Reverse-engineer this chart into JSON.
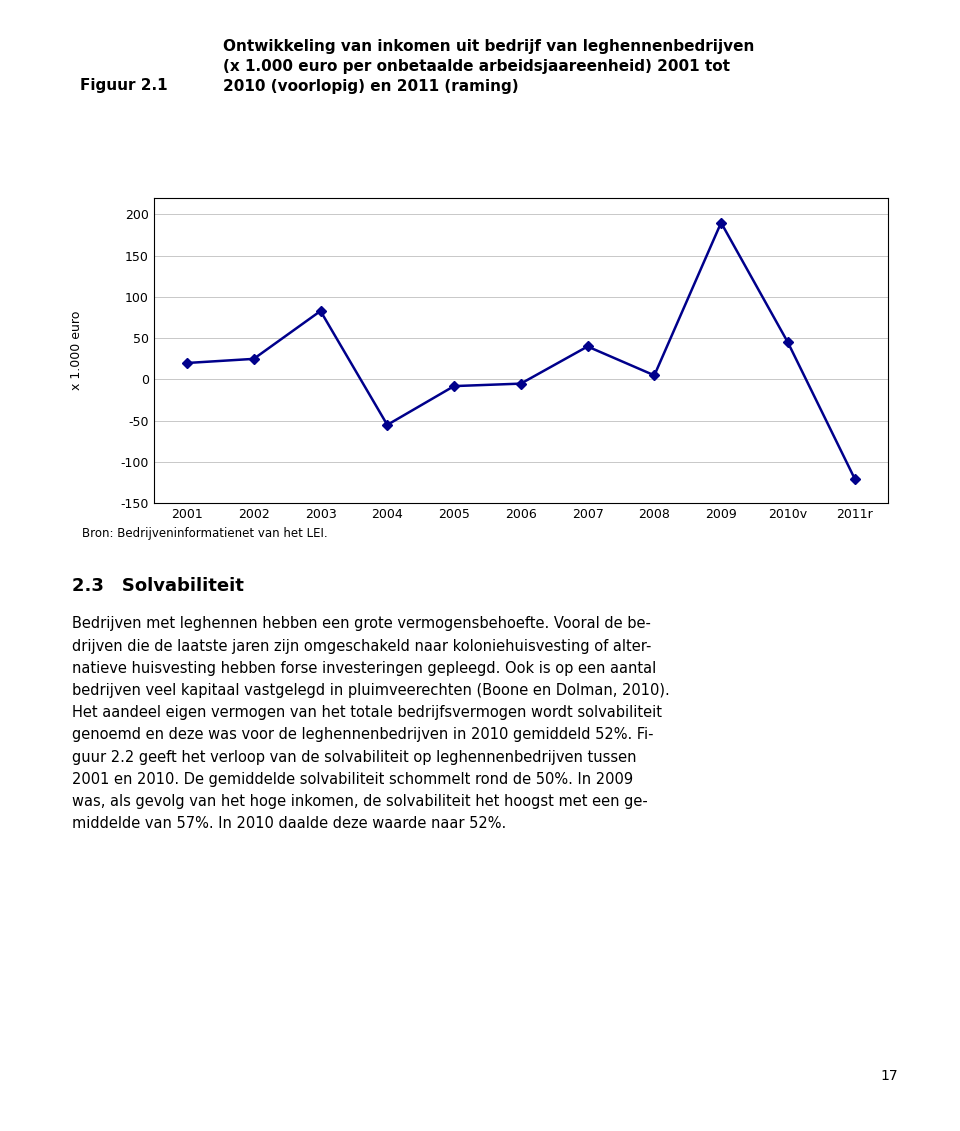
{
  "fig_label": "Figuur 2.1",
  "title_line1": "Ontwikkeling van inkomen uit bedrijf van leghennenbedrijven",
  "title_line2": "(x 1.000 euro per onbetaalde arbeidsjaareenheid) 2001 tot",
  "title_line3": "2010 (voorlopig) en 2011 (raming)",
  "x_labels": [
    "2001",
    "2002",
    "2003",
    "2004",
    "2005",
    "2006",
    "2007",
    "2008",
    "2009",
    "2010v",
    "2011r"
  ],
  "y_values": [
    20,
    25,
    83,
    -55,
    -8,
    -5,
    40,
    5,
    190,
    45,
    -120
  ],
  "ylabel": "x 1.000 euro",
  "ylim": [
    -150,
    220
  ],
  "yticks": [
    -150,
    -100,
    -50,
    0,
    50,
    100,
    150,
    200
  ],
  "source_text": "Bron: Bedrijveninformatienet van het LEI.",
  "line_color": "#00008B",
  "marker": "D",
  "marker_size": 5,
  "header_bg": "#C8C8C8",
  "chart_bg": "#FFFFFF",
  "source_bg": "#E8E8E8",
  "section_number": "2.3",
  "section_title": "Solvabiliteit",
  "body_lines": [
    "Bedrijven met leghennen hebben een grote vermogensbehoefte. Vooral de be-",
    "drijven die de laatste jaren zijn omgeschakeld naar koloniehuisvesting of alter-",
    "natieve huisvesting hebben forse investeringen gepleegd. Ook is op een aantal",
    "bedrijven veel kapitaal vastgelegd in pluimveerechten (Boone en Dolman, 2010).",
    "Het aandeel eigen vermogen van het totale bedrijfsvermogen wordt solvabiliteit",
    "genoemd en deze was voor de leghennenbedrijven in 2010 gemiddeld 52%. Fi-",
    "guur 2.2 geeft het verloop van de solvabiliteit op leghennenbedrijven tussen",
    "2001 en 2010. De gemiddelde solvabiliteit schommelt rond de 50%. In 2009",
    "was, als gevolg van het hoge inkomen, de solvabiliteit het hoogst met een ge-",
    "middelde van 57%. In 2010 daalde deze waarde naar 52%."
  ],
  "page_number": "17",
  "grid_color": "#C8C8C8",
  "fig_width": 9.6,
  "fig_height": 11.31
}
